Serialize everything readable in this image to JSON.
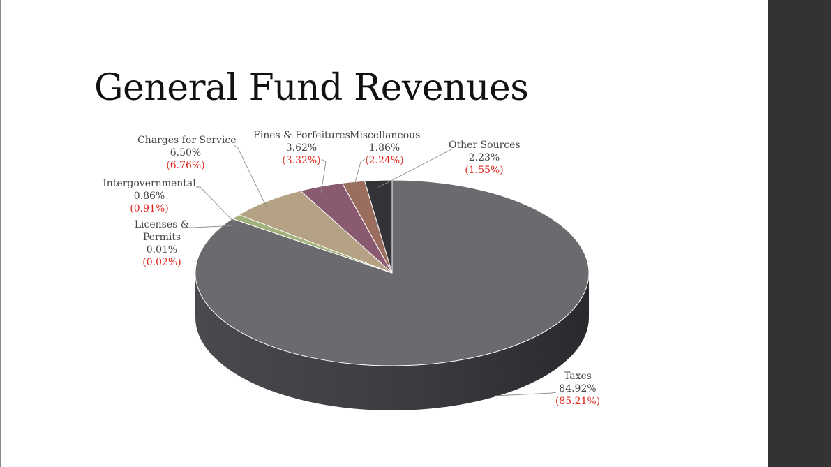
{
  "slide": {
    "title": "General Fund Revenues"
  },
  "chart_data": {
    "type": "pie",
    "title": "General Fund Revenues",
    "three_d": true,
    "slices": [
      {
        "key": "taxes",
        "label": "Taxes",
        "value": 84.92,
        "value_label": "84.92%",
        "prior_label": "(85.21%)",
        "color": "#6b6a6f"
      },
      {
        "key": "licenses",
        "label": "Licenses & Permits",
        "label_lines": [
          "Licenses &",
          "Permits"
        ],
        "value": 0.01,
        "value_label": "0.01%",
        "prior_label": "(0.02%)",
        "color": "#9aa07a"
      },
      {
        "key": "intergov",
        "label": "Intergovernmental",
        "value": 0.86,
        "value_label": "0.86%",
        "prior_label": "(0.91%)",
        "color": "#a3b27c"
      },
      {
        "key": "charges",
        "label": "Charges for Service",
        "value": 6.5,
        "value_label": "6.50%",
        "prior_label": "(6.76%)",
        "color": "#b5a184"
      },
      {
        "key": "fines",
        "label": "Fines & Forfeitures",
        "value": 3.62,
        "value_label": "3.62%",
        "prior_label": "(3.32%)",
        "color": "#8a5a70"
      },
      {
        "key": "misc",
        "label": "Miscellaneous",
        "value": 1.86,
        "value_label": "1.86%",
        "prior_label": "(2.24%)",
        "color": "#9a6d5e"
      },
      {
        "key": "other",
        "label": "Other Sources",
        "value": 2.23,
        "value_label": "2.23%",
        "prior_label": "(1.55%)",
        "color": "#333338"
      }
    ]
  }
}
